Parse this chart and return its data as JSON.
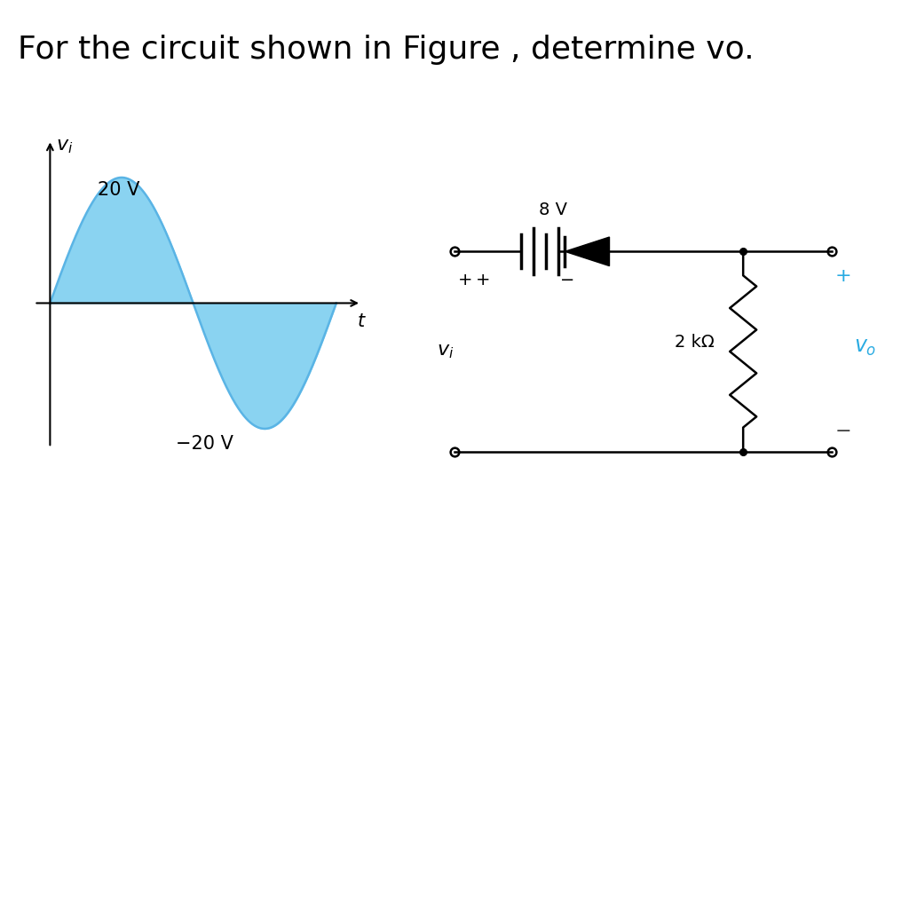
{
  "title": "For the circuit shown in Figure , determine vo.",
  "title_fontsize": 26,
  "bg_color": "#ffffff",
  "sine_color": "#5ab4e5",
  "sine_fill_color": "#7dcff0",
  "sine_amplitude": 20,
  "wire_color": "#000000",
  "resistor_color": "#000000",
  "diode_color": "#000000",
  "cyan_color": "#29abe2",
  "label_8V": "8 V",
  "label_2kohm": "2 kΩ",
  "label_20V": "20 V",
  "label_neg20V": "−20 V"
}
